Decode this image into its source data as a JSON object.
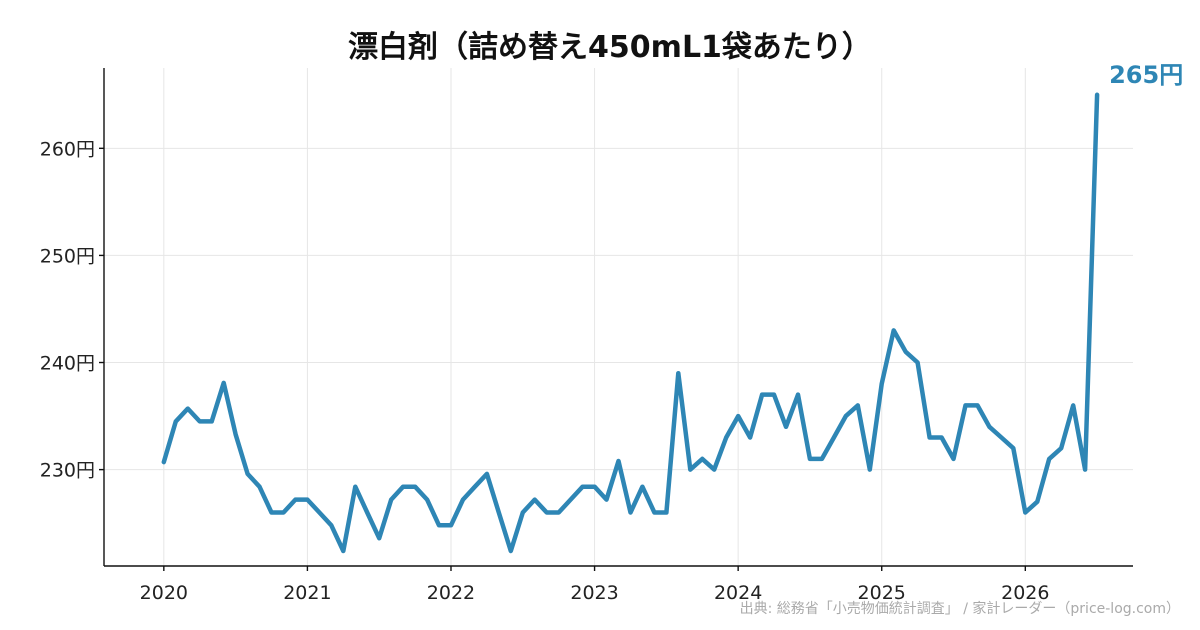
{
  "chart_data": {
    "type": "line",
    "title": "漂白剤（詰め替え450mL1袋あたり）",
    "xlabel": "",
    "ylabel": "",
    "x_ticks": [
      "2020",
      "2021",
      "2022",
      "2023",
      "2024",
      "2025",
      "2026"
    ],
    "y_ticks": [
      "230円",
      "240円",
      "250円",
      "260円"
    ],
    "y_tick_values": [
      230,
      240,
      250,
      260
    ],
    "xlim": [
      "2019-08",
      "2026-10"
    ],
    "ylim": [
      221,
      267.5
    ],
    "grid": true,
    "series": [
      {
        "color": "#2e86b5",
        "x": [
          "2020-01",
          "2020-02",
          "2020-03",
          "2020-04",
          "2020-05",
          "2020-06",
          "2020-07",
          "2020-08",
          "2020-09",
          "2020-10",
          "2020-11",
          "2020-12",
          "2021-01",
          "2021-02",
          "2021-03",
          "2021-04",
          "2021-05",
          "2021-06",
          "2021-07",
          "2021-08",
          "2021-09",
          "2021-10",
          "2021-11",
          "2021-12",
          "2022-01",
          "2022-02",
          "2022-03",
          "2022-04",
          "2022-05",
          "2022-06",
          "2022-07",
          "2022-08",
          "2022-09",
          "2022-10",
          "2022-11",
          "2022-12",
          "2023-01",
          "2023-02",
          "2023-03",
          "2023-04",
          "2023-05",
          "2023-06",
          "2023-07",
          "2023-08",
          "2023-09",
          "2023-10",
          "2023-11",
          "2023-12",
          "2024-01",
          "2024-02",
          "2024-03",
          "2024-04",
          "2024-05",
          "2024-06",
          "2024-07",
          "2024-08",
          "2024-09",
          "2024-10",
          "2024-11",
          "2024-12",
          "2025-01",
          "2025-02",
          "2025-03",
          "2025-04",
          "2025-05",
          "2025-06",
          "2025-07",
          "2025-08",
          "2025-09",
          "2025-10",
          "2025-11",
          "2025-12",
          "2026-01",
          "2026-02",
          "2026-03",
          "2026-04",
          "2026-05",
          "2026-06",
          "2026-07"
        ],
        "values": [
          230.7,
          234.5,
          235.7,
          234.5,
          234.5,
          238.1,
          233.3,
          229.6,
          228.4,
          226.0,
          226.0,
          227.2,
          227.2,
          226.0,
          224.8,
          222.4,
          228.4,
          226.0,
          223.6,
          227.2,
          228.4,
          228.4,
          227.2,
          224.8,
          224.8,
          227.2,
          228.4,
          229.6,
          226.0,
          222.4,
          226.0,
          227.2,
          226.0,
          226.0,
          227.2,
          228.4,
          228.4,
          227.2,
          230.8,
          226.0,
          228.4,
          226.0,
          226.0,
          239.0,
          230.0,
          231.0,
          230.0,
          233.0,
          235.0,
          233.0,
          237.0,
          237.0,
          234.0,
          237.0,
          231.0,
          231.0,
          233.0,
          235.0,
          236.0,
          230.0,
          238.0,
          243.0,
          241.0,
          240.0,
          233.0,
          233.0,
          231.0,
          236.0,
          236.0,
          234.0,
          233.0,
          232.0,
          226.0,
          227.0,
          231.0,
          232.0,
          236.0,
          230.0,
          265.0
        ]
      }
    ],
    "end_label": "265円",
    "legend": "none"
  },
  "footer": {
    "source": "出典: 総務省「小売物価統計調査」 / 家計レーダー（price-log.com）"
  }
}
